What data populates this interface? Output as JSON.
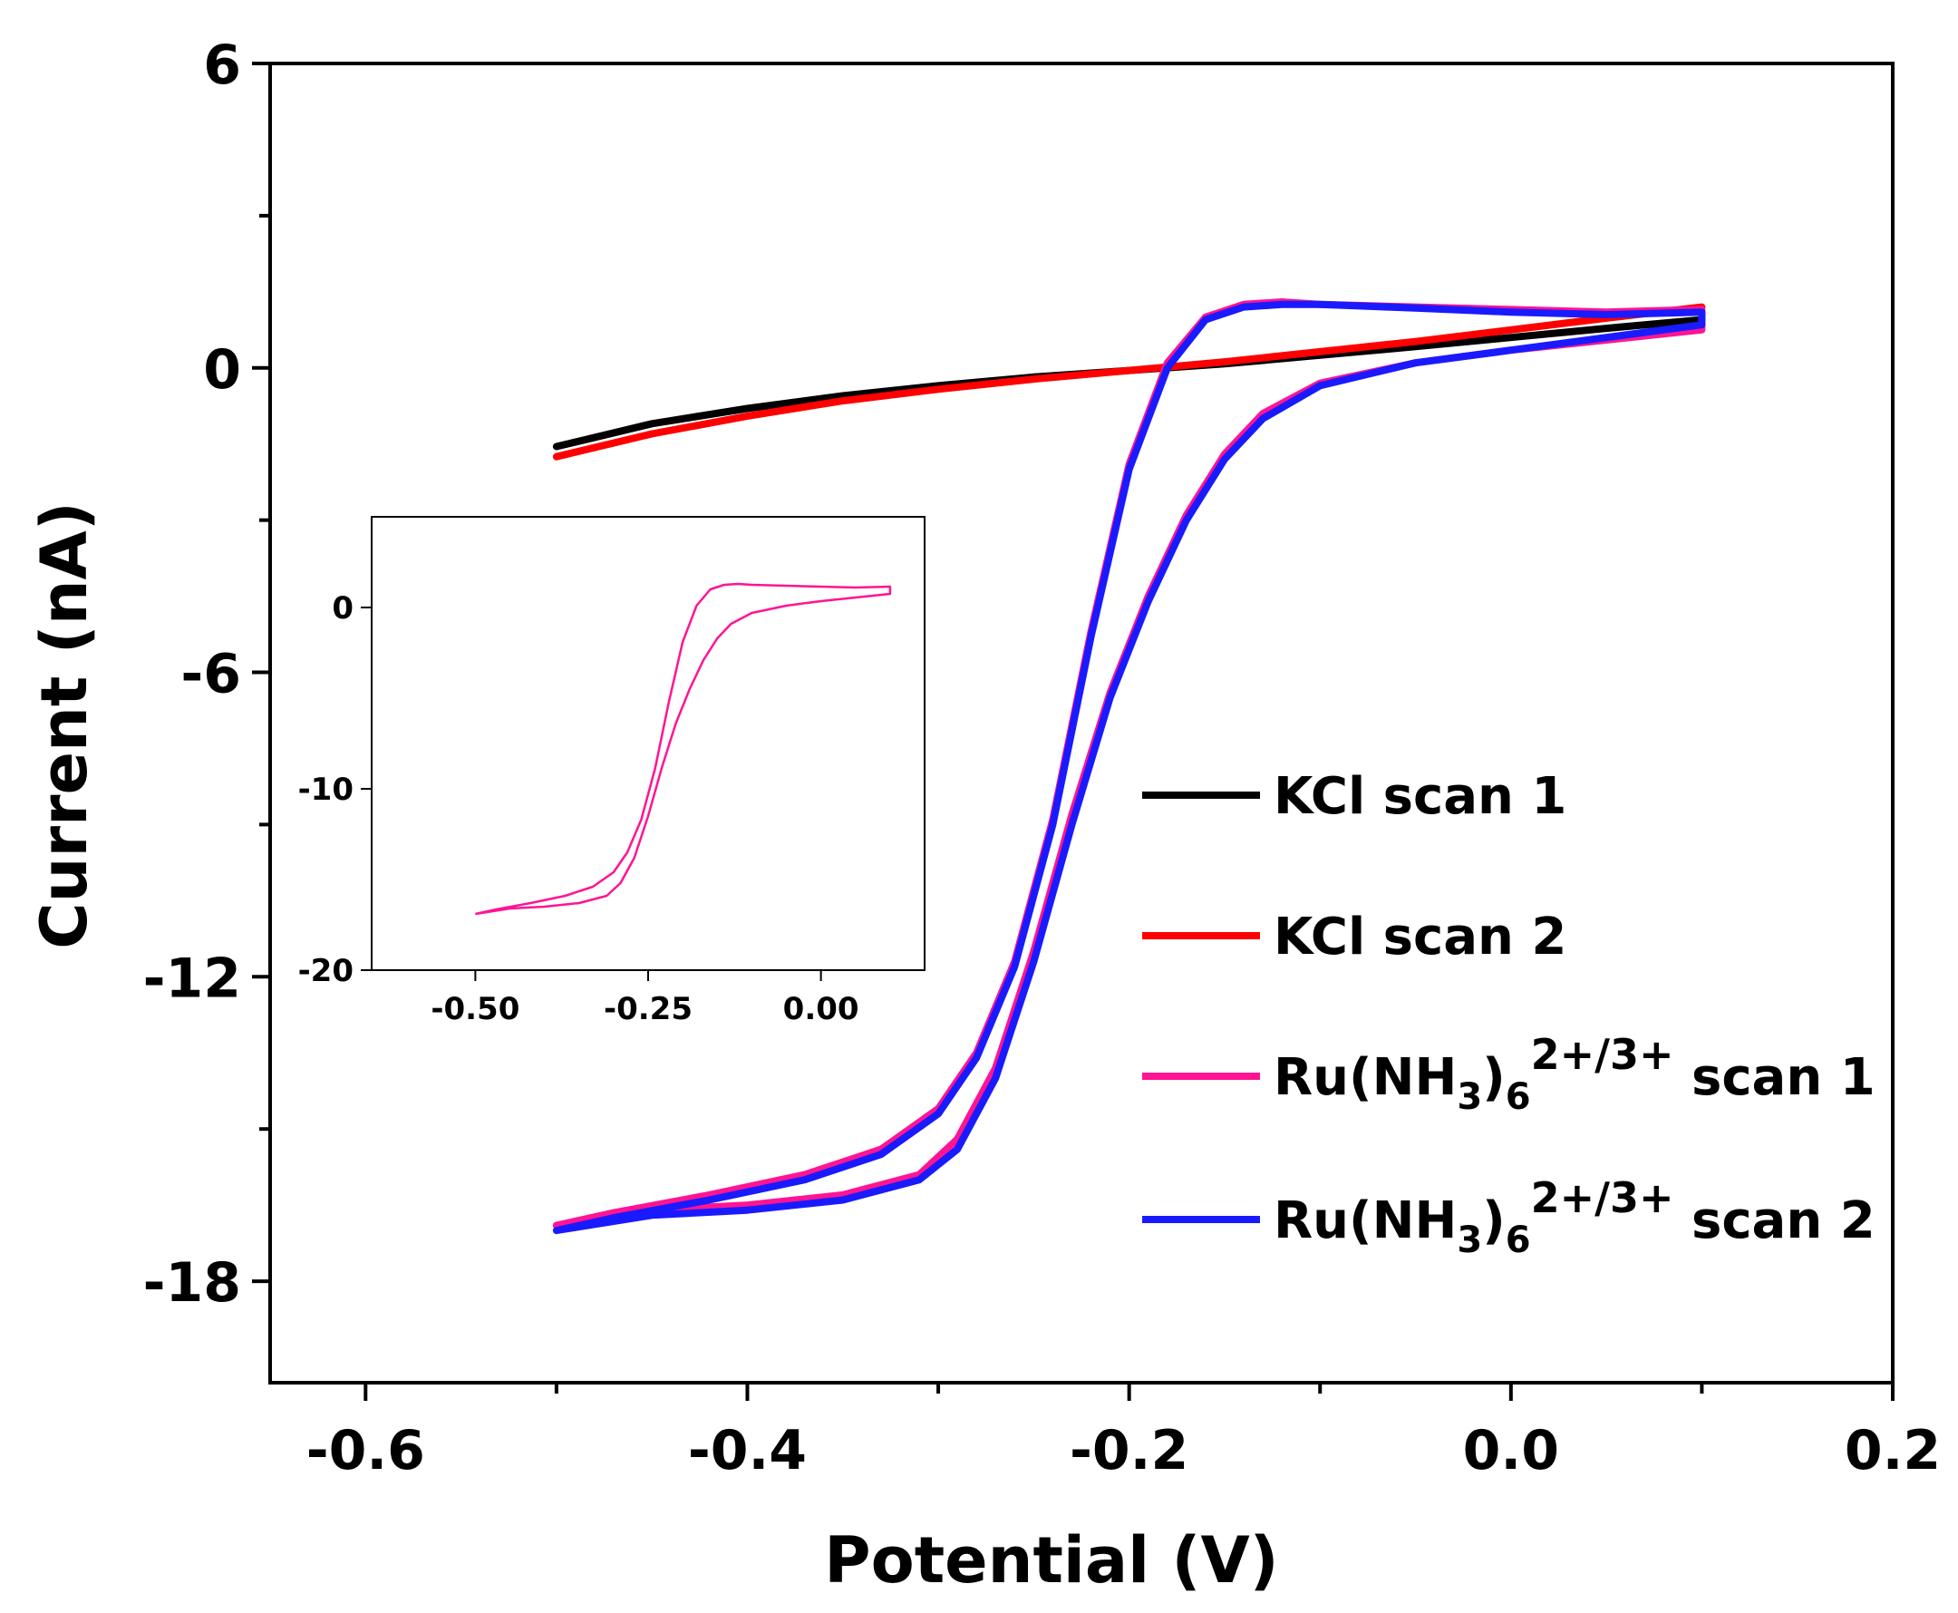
{
  "chart_data": {
    "type": "line",
    "xlabel": "Potential (V)",
    "ylabel": "Current (nA)",
    "xlim": [
      -0.65,
      0.2
    ],
    "ylim": [
      -20,
      6
    ],
    "xticks": [
      -0.6,
      -0.4,
      -0.2,
      0.0,
      0.2
    ],
    "xtick_labels": [
      "-0.6",
      "-0.4",
      "-0.2",
      "0.0",
      "0.2"
    ],
    "yticks": [
      6,
      0,
      -6,
      -12,
      -18
    ],
    "ytick_labels": [
      "6",
      "0",
      "-6",
      "-12",
      "-18"
    ],
    "legend_position": "right",
    "series": [
      {
        "name": "KCl scan 1",
        "legend_main": "KCl scan 1",
        "color": "#000000",
        "x": [
          -0.5,
          -0.45,
          -0.4,
          -0.35,
          -0.3,
          -0.25,
          -0.2,
          -0.15,
          -0.1,
          -0.05,
          0.0,
          0.05,
          0.1
        ],
        "y": [
          -1.55,
          -1.1,
          -0.8,
          -0.55,
          -0.35,
          -0.18,
          -0.05,
          0.08,
          0.25,
          0.42,
          0.6,
          0.78,
          0.95
        ]
      },
      {
        "name": "KCl scan 2",
        "legend_main": "KCl scan 2",
        "color": "#ff0000",
        "x": [
          -0.5,
          -0.45,
          -0.4,
          -0.35,
          -0.3,
          -0.25,
          -0.2,
          -0.15,
          -0.1,
          -0.05,
          0.0,
          0.05,
          0.1
        ],
        "y": [
          -1.75,
          -1.3,
          -0.95,
          -0.65,
          -0.42,
          -0.22,
          -0.05,
          0.12,
          0.32,
          0.52,
          0.75,
          0.98,
          1.2
        ]
      },
      {
        "name": "Ru(NH3)6 2+/3+ scan 1",
        "legend_main": "Ru(NH",
        "legend_sub1": "3",
        "legend_mid": ")",
        "legend_sub2": "6",
        "legend_sup": "2+/3+",
        "legend_tail": "scan 1",
        "color": "#ff1493",
        "x": [
          -0.5,
          -0.45,
          -0.4,
          -0.35,
          -0.31,
          -0.29,
          -0.27,
          -0.25,
          -0.23,
          -0.21,
          -0.19,
          -0.17,
          -0.15,
          -0.13,
          -0.1,
          -0.05,
          0.0,
          0.05,
          0.1,
          0.1,
          0.05,
          0.0,
          -0.05,
          -0.1,
          -0.12,
          -0.14,
          -0.16,
          -0.18,
          -0.2,
          -0.22,
          -0.24,
          -0.26,
          -0.28,
          -0.3,
          -0.33,
          -0.37,
          -0.42,
          -0.47,
          -0.5
        ],
        "y": [
          -16.9,
          -16.6,
          -16.5,
          -16.3,
          -15.9,
          -15.2,
          -13.8,
          -11.5,
          -8.8,
          -6.4,
          -4.5,
          -2.9,
          -1.7,
          -0.9,
          -0.3,
          0.1,
          0.35,
          0.55,
          0.75,
          1.15,
          1.1,
          1.15,
          1.2,
          1.25,
          1.3,
          1.25,
          1.0,
          0.1,
          -1.9,
          -5.2,
          -8.9,
          -11.7,
          -13.5,
          -14.6,
          -15.4,
          -15.9,
          -16.3,
          -16.65,
          -16.9
        ]
      },
      {
        "name": "Ru(NH3)6 2+/3+ scan 2",
        "legend_main": "Ru(NH",
        "legend_sub1": "3",
        "legend_mid": ")",
        "legend_sub2": "6",
        "legend_sup": "2+/3+",
        "legend_tail": "scan 2",
        "color": "#1a1aff",
        "x": [
          -0.5,
          -0.45,
          -0.4,
          -0.35,
          -0.31,
          -0.29,
          -0.27,
          -0.25,
          -0.23,
          -0.21,
          -0.19,
          -0.17,
          -0.15,
          -0.13,
          -0.1,
          -0.05,
          0.0,
          0.05,
          0.1,
          0.1,
          0.05,
          0.0,
          -0.05,
          -0.1,
          -0.12,
          -0.14,
          -0.16,
          -0.18,
          -0.2,
          -0.22,
          -0.24,
          -0.26,
          -0.28,
          -0.3,
          -0.33,
          -0.37,
          -0.42,
          -0.47,
          -0.5
        ],
        "y": [
          -17.0,
          -16.7,
          -16.6,
          -16.4,
          -16.0,
          -15.4,
          -14.0,
          -11.7,
          -9.0,
          -6.5,
          -4.6,
          -3.0,
          -1.8,
          -1.0,
          -0.35,
          0.1,
          0.35,
          0.6,
          0.85,
          1.1,
          1.05,
          1.1,
          1.18,
          1.25,
          1.25,
          1.2,
          0.95,
          0.0,
          -2.0,
          -5.3,
          -9.0,
          -11.8,
          -13.6,
          -14.7,
          -15.5,
          -16.0,
          -16.4,
          -16.75,
          -17.0
        ]
      }
    ],
    "inset": {
      "xlim": [
        -0.65,
        0.15
      ],
      "ylim": [
        -20,
        5
      ],
      "xticks": [
        -0.5,
        -0.25,
        0.0
      ],
      "xtick_labels": [
        "-0.50",
        "-0.25",
        "0.00"
      ],
      "yticks": [
        0,
        -10,
        -20
      ],
      "ytick_labels": [
        "0",
        "-10",
        "-20"
      ],
      "series": [
        {
          "name": "Ru(NH3)6 2+/3+",
          "color": "#ff1493",
          "x": [
            -0.5,
            -0.45,
            -0.4,
            -0.35,
            -0.31,
            -0.29,
            -0.27,
            -0.25,
            -0.23,
            -0.21,
            -0.19,
            -0.17,
            -0.15,
            -0.13,
            -0.1,
            -0.05,
            0.0,
            0.05,
            0.1,
            0.1,
            0.05,
            0.0,
            -0.05,
            -0.1,
            -0.12,
            -0.14,
            -0.16,
            -0.18,
            -0.2,
            -0.22,
            -0.24,
            -0.26,
            -0.28,
            -0.3,
            -0.33,
            -0.37,
            -0.42,
            -0.47,
            -0.5
          ],
          "y": [
            -16.9,
            -16.6,
            -16.5,
            -16.3,
            -15.9,
            -15.2,
            -13.8,
            -11.5,
            -8.8,
            -6.4,
            -4.5,
            -2.9,
            -1.7,
            -0.9,
            -0.3,
            0.1,
            0.35,
            0.55,
            0.75,
            1.15,
            1.1,
            1.15,
            1.2,
            1.25,
            1.3,
            1.25,
            1.0,
            0.1,
            -1.9,
            -5.2,
            -8.9,
            -11.7,
            -13.5,
            -14.6,
            -15.4,
            -15.9,
            -16.3,
            -16.65,
            -16.9
          ]
        }
      ]
    }
  }
}
